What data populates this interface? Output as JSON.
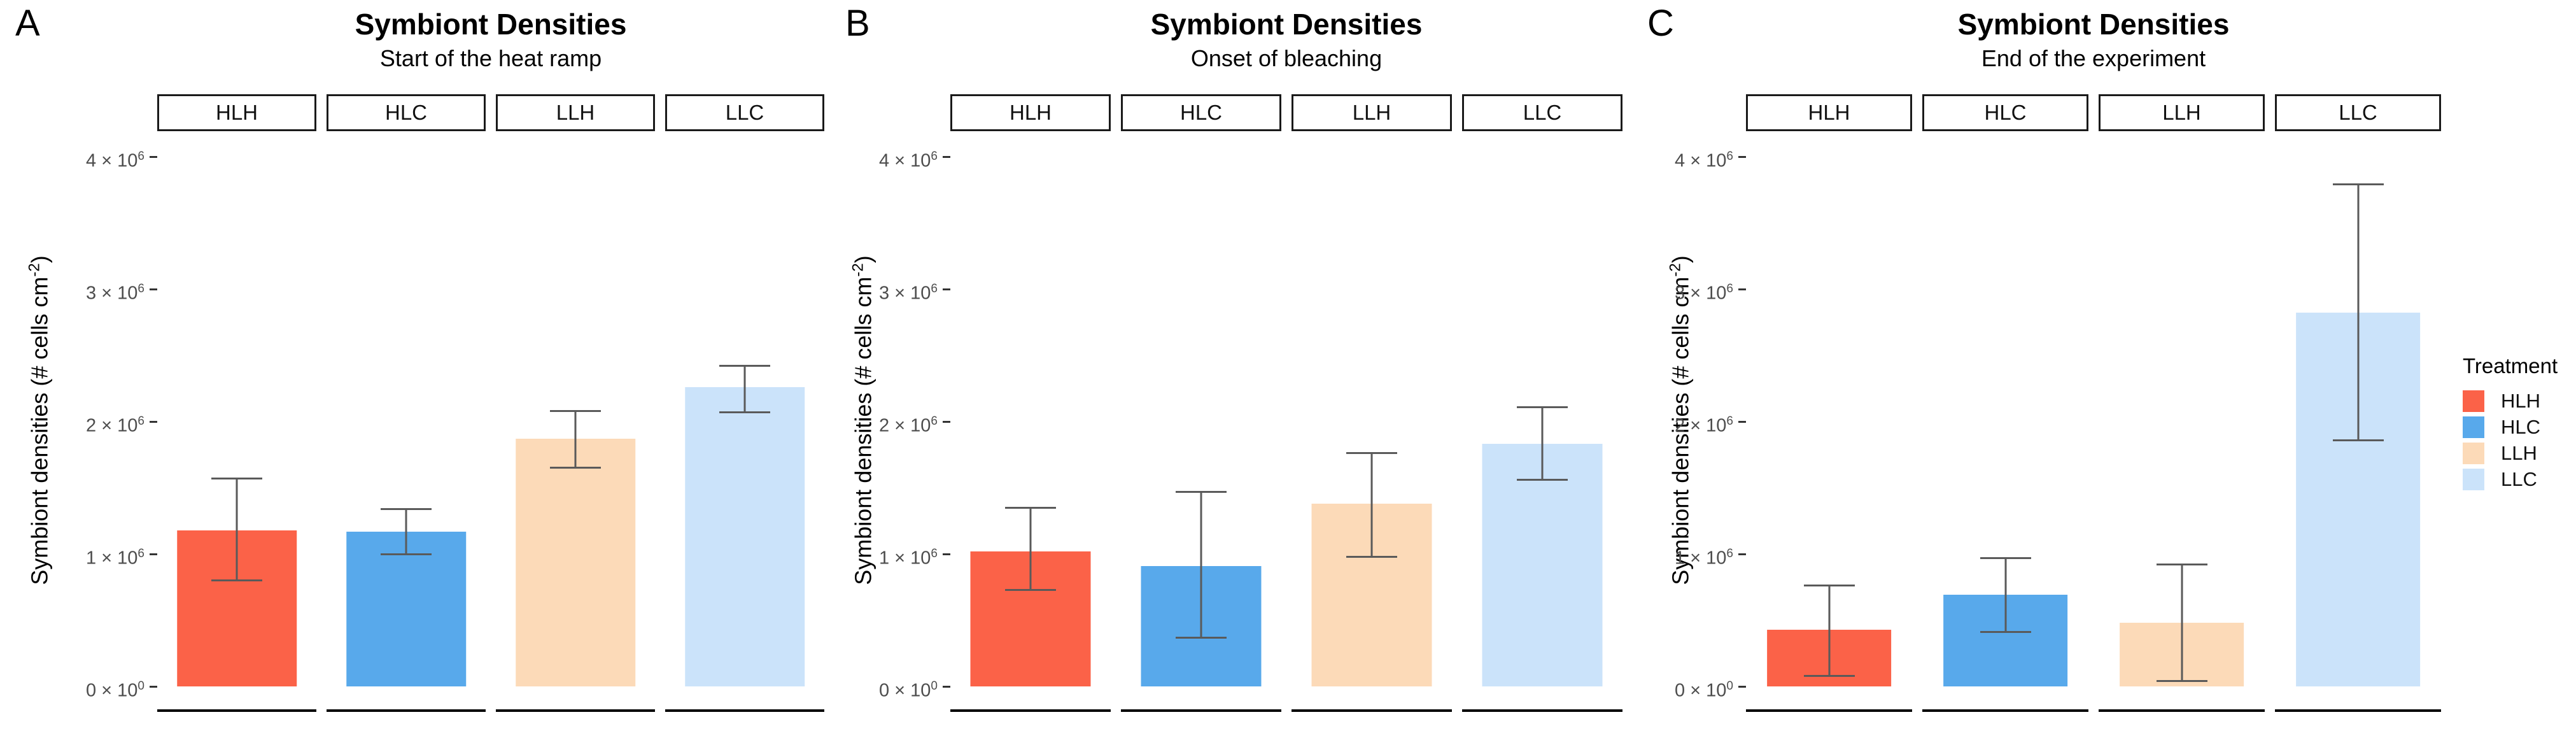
{
  "figure": {
    "background": "#ffffff"
  },
  "y_axis": {
    "title": "Symbiont densities (# cells cm^-2)",
    "ticks": [
      {
        "value": 0,
        "label": "0 × 10^0"
      },
      {
        "value": 1000000,
        "label": "1 × 10^6"
      },
      {
        "value": 2000000,
        "label": "2 × 10^6"
      },
      {
        "value": 3000000,
        "label": "3 × 10^6"
      },
      {
        "value": 4000000,
        "label": "4 × 10^6"
      }
    ]
  },
  "treatment_colors": {
    "HLH": "#fb6248",
    "HLC": "#58a9eb",
    "LLH": "#fcdab8",
    "LLC": "#cbe3fa"
  },
  "legend": {
    "title": "Treatment",
    "items": [
      {
        "label": "HLH",
        "color": "#fb6248"
      },
      {
        "label": "HLC",
        "color": "#58a9eb"
      },
      {
        "label": "LLH",
        "color": "#fcdab8"
      },
      {
        "label": "LLC",
        "color": "#cbe3fa"
      }
    ]
  },
  "chart_data": [
    {
      "type": "bar",
      "panel_label": "A",
      "title": "Symbiont Densities",
      "subtitle": "Start of the heat ramp",
      "xlabel": "",
      "ylabel": "Symbiont densities (# cells cm^-2)",
      "ylim": [
        0,
        4200000
      ],
      "grid": false,
      "facets": [
        "HLH",
        "HLC",
        "LLH",
        "LLC"
      ],
      "series": [
        {
          "facet": "HLH",
          "treatment": "HLH",
          "value": 1180000,
          "err_low": 800000,
          "err_high": 1570000
        },
        {
          "facet": "HLC",
          "treatment": "HLC",
          "value": 1170000,
          "err_low": 1000000,
          "err_high": 1340000
        },
        {
          "facet": "LLH",
          "treatment": "LLH",
          "value": 1870000,
          "err_low": 1650000,
          "err_high": 2080000
        },
        {
          "facet": "LLC",
          "treatment": "LLC",
          "value": 2260000,
          "err_low": 2070000,
          "err_high": 2420000
        }
      ]
    },
    {
      "type": "bar",
      "panel_label": "B",
      "title": "Symbiont Densities",
      "subtitle": "Onset of bleaching",
      "xlabel": "",
      "ylabel": "Symbiont densities (# cells cm^-2)",
      "ylim": [
        0,
        4200000
      ],
      "grid": false,
      "facets": [
        "HLH",
        "HLC",
        "LLH",
        "LLC"
      ],
      "series": [
        {
          "facet": "HLH",
          "treatment": "HLH",
          "value": 1020000,
          "err_low": 730000,
          "err_high": 1350000
        },
        {
          "facet": "HLC",
          "treatment": "HLC",
          "value": 910000,
          "err_low": 370000,
          "err_high": 1470000
        },
        {
          "facet": "LLH",
          "treatment": "LLH",
          "value": 1380000,
          "err_low": 980000,
          "err_high": 1760000
        },
        {
          "facet": "LLC",
          "treatment": "LLC",
          "value": 1830000,
          "err_low": 1560000,
          "err_high": 2110000
        }
      ]
    },
    {
      "type": "bar",
      "panel_label": "C",
      "title": "Symbiont Densities",
      "subtitle": "End of the experiment",
      "xlabel": "",
      "ylabel": "Symbiont densities (# cells cm^-2)",
      "ylim": [
        0,
        4200000
      ],
      "grid": false,
      "legend_position": "right",
      "facets": [
        "HLH",
        "HLC",
        "LLH",
        "LLC"
      ],
      "series": [
        {
          "facet": "HLH",
          "treatment": "HLH",
          "value": 430000,
          "err_low": 80000,
          "err_high": 760000
        },
        {
          "facet": "HLC",
          "treatment": "HLC",
          "value": 690000,
          "err_low": 410000,
          "err_high": 970000
        },
        {
          "facet": "LLH",
          "treatment": "LLH",
          "value": 480000,
          "err_low": 40000,
          "err_high": 920000
        },
        {
          "facet": "LLC",
          "treatment": "LLC",
          "value": 2820000,
          "err_low": 1860000,
          "err_high": 3790000
        }
      ]
    }
  ]
}
